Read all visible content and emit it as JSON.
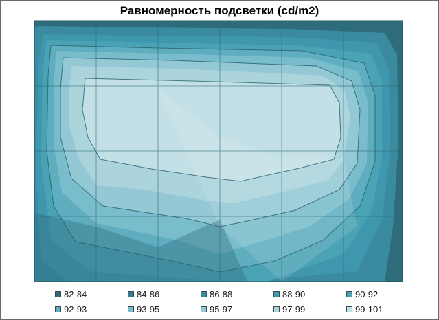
{
  "chart_data": {
    "type": "heatmap",
    "title": "Равномерность подсветки (cd/m2)",
    "bands": [
      {
        "label": "82-84",
        "color": "#2e6c7c"
      },
      {
        "label": "84-86",
        "color": "#347d8f"
      },
      {
        "label": "86-88",
        "color": "#3a8ba0"
      },
      {
        "label": "88-90",
        "color": "#3f97ad"
      },
      {
        "label": "90-92",
        "color": "#4aa2b5"
      },
      {
        "label": "92-93",
        "color": "#5eaec0"
      },
      {
        "label": "93-95",
        "color": "#79bccb"
      },
      {
        "label": "95-97",
        "color": "#93c8d4"
      },
      {
        "label": "97-99",
        "color": "#abd4dd"
      },
      {
        "label": "99-101",
        "color": "#c3e0e6"
      }
    ]
  }
}
